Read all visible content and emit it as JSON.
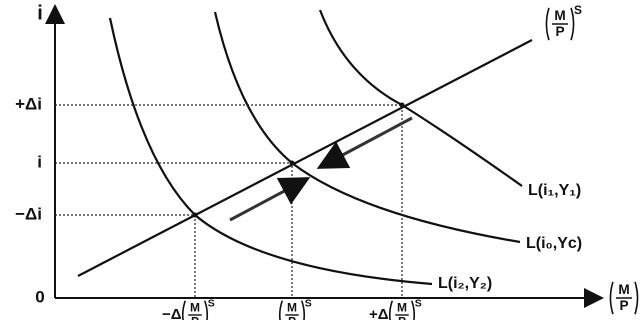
{
  "axes": {
    "y_label": "i",
    "origin": "0",
    "x_label": {
      "numerator": "M",
      "denominator": "P"
    }
  },
  "supply": {
    "label": {
      "numerator": "M",
      "denominator": "P",
      "superscript": "S"
    }
  },
  "y_levels": [
    "+Δi",
    "i",
    "−Δi"
  ],
  "x_levels": [
    {
      "prefix": "−Δ",
      "numerator": "M",
      "denominator": "P",
      "superscript": "S"
    },
    {
      "numerator": "M",
      "denominator": "P",
      "superscript": "S"
    },
    {
      "prefix": "+Δ",
      "numerator": "M",
      "denominator": "P",
      "superscript": "S"
    }
  ],
  "curves": [
    "L(i₁,Y₁)",
    "L(i₀,Yc)",
    "L(i₂,Y₂)"
  ]
}
